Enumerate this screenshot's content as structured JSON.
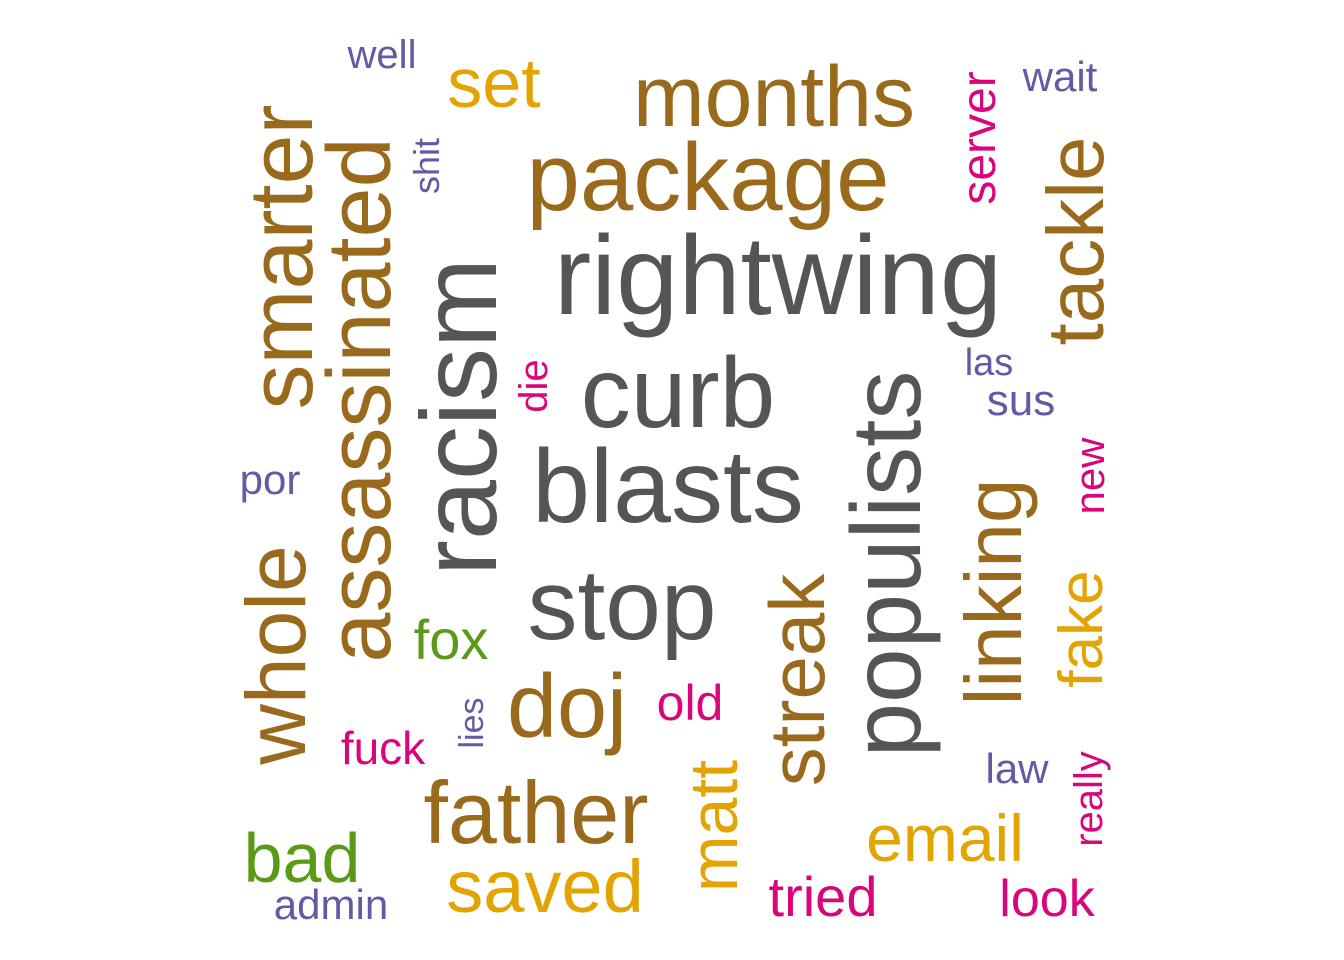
{
  "colors": {
    "gray": "#555555",
    "brown": "#9a6a1c",
    "gold": "#e3a300",
    "magenta": "#d9057a",
    "purple": "#6359a4",
    "green": "#5a9a17"
  },
  "words": [
    {
      "text": "rightwing",
      "color": "gray"
    },
    {
      "text": "curb",
      "color": "gray"
    },
    {
      "text": "blasts",
      "color": "gray"
    },
    {
      "text": "racism",
      "color": "gray"
    },
    {
      "text": "stop",
      "color": "gray"
    },
    {
      "text": "populists",
      "color": "gray"
    },
    {
      "text": "package",
      "color": "brown"
    },
    {
      "text": "months",
      "color": "brown"
    },
    {
      "text": "smarter",
      "color": "brown"
    },
    {
      "text": "assassinated",
      "color": "brown"
    },
    {
      "text": "whole",
      "color": "brown"
    },
    {
      "text": "tackle",
      "color": "brown"
    },
    {
      "text": "linking",
      "color": "brown"
    },
    {
      "text": "streak",
      "color": "brown"
    },
    {
      "text": "doj",
      "color": "brown"
    },
    {
      "text": "father",
      "color": "brown"
    },
    {
      "text": "set",
      "color": "gold"
    },
    {
      "text": "matt",
      "color": "gold"
    },
    {
      "text": "saved",
      "color": "gold"
    },
    {
      "text": "email",
      "color": "gold"
    },
    {
      "text": "fake",
      "color": "gold"
    },
    {
      "text": "server",
      "color": "magenta"
    },
    {
      "text": "die",
      "color": "magenta"
    },
    {
      "text": "old",
      "color": "magenta"
    },
    {
      "text": "fuck",
      "color": "magenta"
    },
    {
      "text": "tried",
      "color": "magenta"
    },
    {
      "text": "look",
      "color": "magenta"
    },
    {
      "text": "new",
      "color": "magenta"
    },
    {
      "text": "really",
      "color": "magenta"
    },
    {
      "text": "well",
      "color": "purple"
    },
    {
      "text": "wait",
      "color": "purple"
    },
    {
      "text": "shit",
      "color": "purple"
    },
    {
      "text": "las",
      "color": "purple"
    },
    {
      "text": "sus",
      "color": "purple"
    },
    {
      "text": "por",
      "color": "purple"
    },
    {
      "text": "lies",
      "color": "purple"
    },
    {
      "text": "law",
      "color": "purple"
    },
    {
      "text": "admin",
      "color": "purple"
    },
    {
      "text": "fox",
      "color": "green"
    },
    {
      "text": "bad",
      "color": "green"
    }
  ]
}
